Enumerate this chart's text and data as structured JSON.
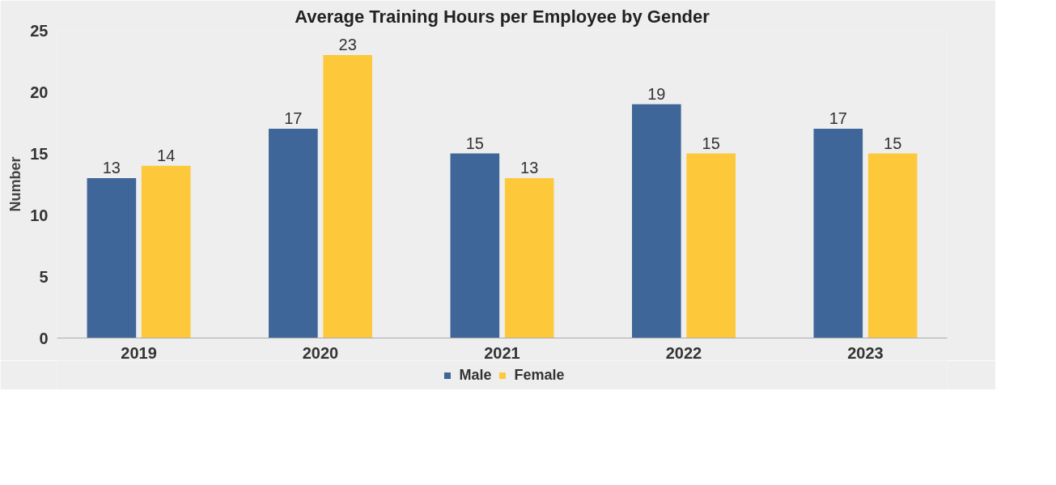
{
  "chart_data": {
    "type": "bar",
    "title": "Average Training Hours per Employee by Gender",
    "ylabel": "Number",
    "categories": [
      "2019",
      "2020",
      "2021",
      "2022",
      "2023"
    ],
    "series": [
      {
        "name": "Male",
        "color": "#3f6699",
        "values": [
          13,
          17,
          15,
          19,
          17
        ]
      },
      {
        "name": "Female",
        "color": "#fdc83a",
        "values": [
          14,
          23,
          13,
          15,
          15
        ]
      }
    ],
    "ylim": [
      0,
      25
    ],
    "yticks": [
      0,
      5,
      10,
      15,
      20,
      25
    ],
    "grid": false,
    "legend": "bottom",
    "data_labels": true
  }
}
